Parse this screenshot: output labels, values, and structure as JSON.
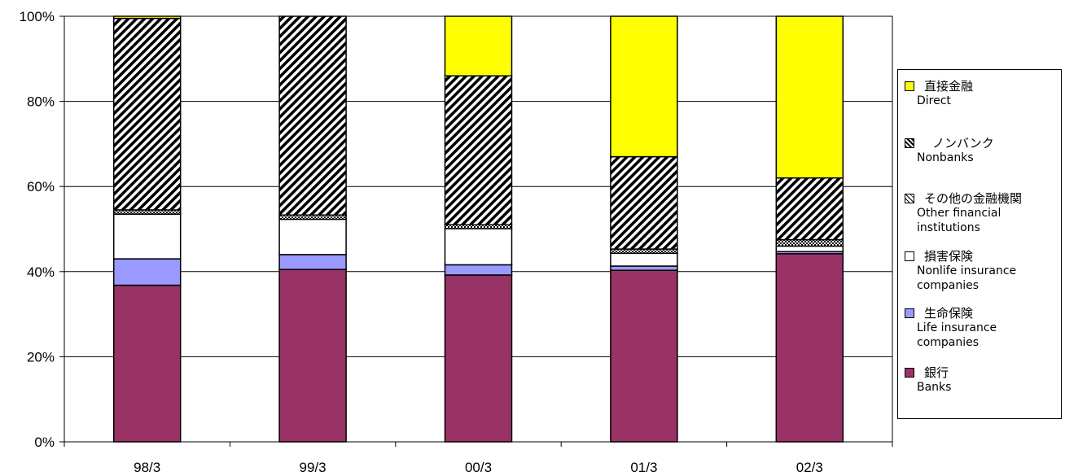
{
  "chart_data": {
    "type": "bar",
    "stacked": true,
    "normalized": true,
    "categories": [
      "98/3",
      "99/3",
      "00/3",
      "01/3",
      "02/3"
    ],
    "y_ticks": [
      "0%",
      "20%",
      "40%",
      "60%",
      "80%",
      "100%"
    ],
    "ylim": [
      0,
      100
    ],
    "grid": true,
    "legend_position": "right",
    "series": [
      {
        "name": "銀行",
        "name_en": "Banks",
        "color": "#993366",
        "pattern": "solid",
        "values": [
          36.8,
          40.5,
          39.2,
          40.3,
          44.2
        ]
      },
      {
        "name": "生命保険",
        "name_en": "Life insurance companies",
        "color": "#9999ff",
        "pattern": "solid",
        "values": [
          6.2,
          3.5,
          2.4,
          1.0,
          0.5
        ]
      },
      {
        "name": "損害保険",
        "name_en": "Nonlife insurance companies",
        "color": "#ffffff",
        "pattern": "solid",
        "values": [
          10.5,
          8.3,
          8.5,
          3.0,
          1.3
        ]
      },
      {
        "name": "その他の金融機関",
        "name_en": "Other financial institutions",
        "color": "#ffffff",
        "pattern": "crosshatch",
        "values": [
          1.0,
          1.0,
          0.9,
          1.0,
          1.5
        ]
      },
      {
        "name": "ノンバンク",
        "name_en": "Nonbanks",
        "color": "#ffffff",
        "pattern": "diagonal",
        "values": [
          45.0,
          46.7,
          35.0,
          21.7,
          14.5
        ]
      },
      {
        "name": "直接金融",
        "name_en": "Direct",
        "color": "#ffff00",
        "pattern": "solid",
        "values": [
          0.5,
          0.0,
          14.0,
          33.0,
          38.0
        ]
      }
    ]
  }
}
